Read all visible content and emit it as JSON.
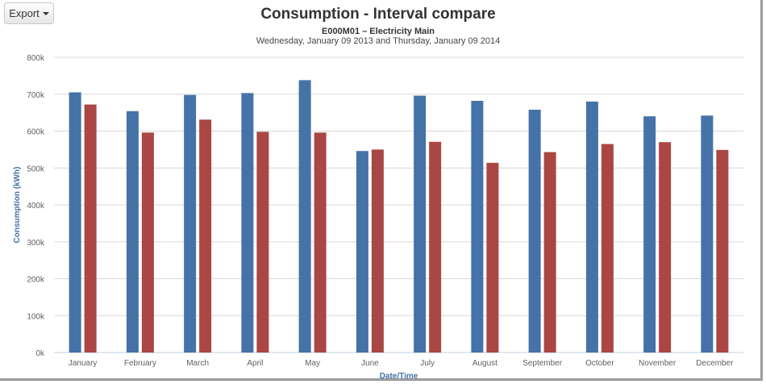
{
  "toolbar": {
    "export_label": "Export"
  },
  "chart_data": {
    "type": "bar",
    "title": "Consumption - Interval compare",
    "subtitle": "E000M01 – Electricity Main",
    "subtitle2": "Wednesday, January 09 2013 and Thursday, January 09 2014",
    "xlabel": "Date/Time",
    "ylabel": "Consumption (kWh)",
    "ylim": [
      0,
      800000
    ],
    "yticks": [
      0,
      100000,
      200000,
      300000,
      400000,
      500000,
      600000,
      700000,
      800000
    ],
    "ytick_labels": [
      "0k",
      "100k",
      "200k",
      "300k",
      "400k",
      "500k",
      "600k",
      "700k",
      "800k"
    ],
    "grid": true,
    "categories": [
      "January",
      "February",
      "March",
      "April",
      "May",
      "June",
      "July",
      "August",
      "September",
      "October",
      "November",
      "December"
    ],
    "series": [
      {
        "color": "#4572a7",
        "values": [
          705000,
          654000,
          698000,
          703000,
          738000,
          546000,
          696000,
          682000,
          658000,
          680000,
          640000,
          642000
        ]
      },
      {
        "color": "#aa4643",
        "values": [
          672000,
          596000,
          631000,
          598000,
          596000,
          550000,
          571000,
          514000,
          543000,
          565000,
          570000,
          549000
        ]
      }
    ]
  }
}
